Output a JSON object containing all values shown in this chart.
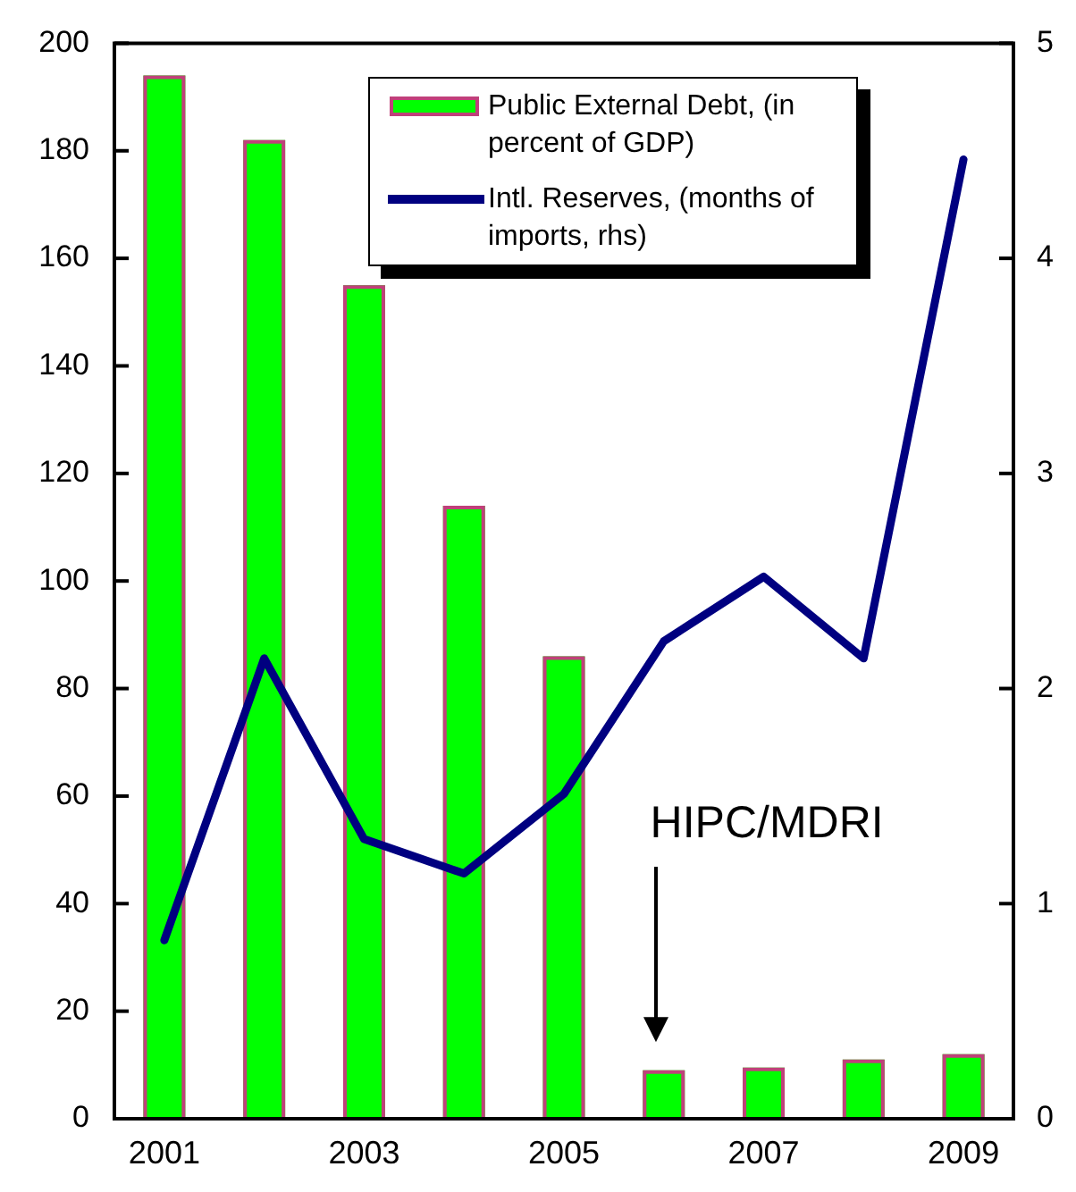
{
  "chart_data": {
    "type": "bar",
    "x": [
      2001,
      2002,
      2003,
      2004,
      2005,
      2006,
      2007,
      2008,
      2009
    ],
    "xlim": [
      2000.5,
      2009.5
    ],
    "xticks": [
      2001,
      2003,
      2005,
      2007,
      2009
    ],
    "ylim": [
      0,
      200
    ],
    "yticks": [
      0,
      20,
      40,
      60,
      80,
      100,
      120,
      140,
      160,
      180,
      200
    ],
    "y2lim": [
      0,
      5
    ],
    "y2ticks": [
      0,
      1,
      2,
      3,
      4,
      5
    ],
    "series": [
      {
        "name": "Public External Debt, (in percent of GDP)",
        "color": "#00ff00",
        "values": [
          194,
          182,
          155,
          114,
          86,
          9,
          9.5,
          11,
          12
        ]
      },
      {
        "name": "Intl. Reserves, (months of imports, rhs)",
        "type": "line",
        "axis": "y2",
        "color": "#000080",
        "values": [
          0.83,
          2.14,
          1.3,
          1.14,
          1.51,
          2.22,
          2.52,
          2.14,
          4.46
        ]
      }
    ],
    "annotations": [
      "HIPC/MDRI"
    ],
    "legend": "top right",
    "grid": false,
    "marker": "none",
    "line_style": "solid"
  }
}
